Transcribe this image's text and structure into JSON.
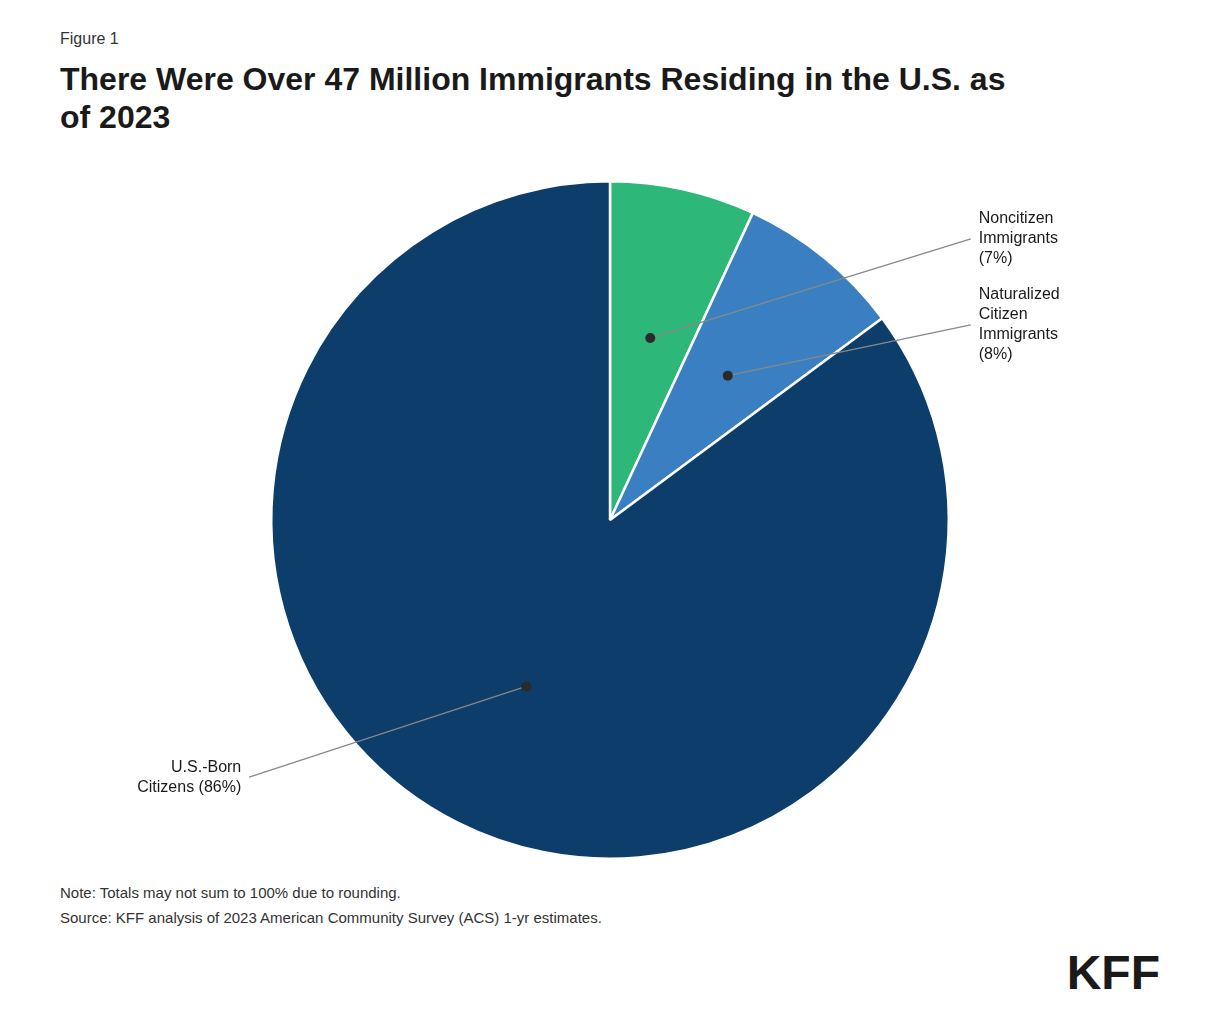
{
  "chart_data": {
    "type": "pie",
    "title": "There Were Over 47 Million Immigrants Residing in the U.S. as\nof 2023",
    "categories": [
      "Noncitizen\nImmigrants\n(7%)",
      "Naturalized\nCitizen\nImmigrants\n(8%)",
      "U.S.-Born\nCitizens (86%)"
    ],
    "values": [
      7,
      8,
      86
    ],
    "colors": [
      "#2db87a",
      "#3a7fc1",
      "#0d3d6b"
    ],
    "annotations": [
      "Figure 1",
      "Note: Totals may not sum to 100% due to rounding.",
      "Source: KFF analysis of 2023 American Community Survey (ACS) 1-yr estimates.",
      "KFF"
    ]
  }
}
